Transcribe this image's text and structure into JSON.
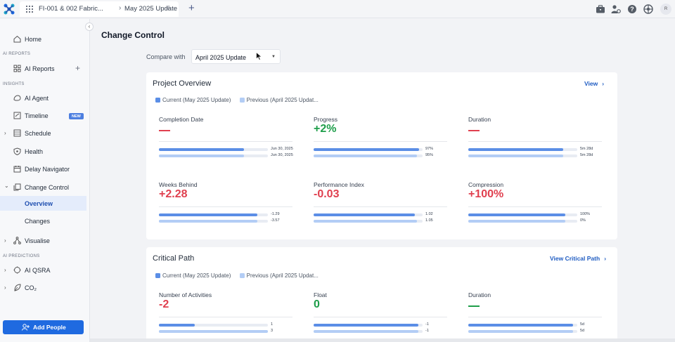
{
  "topbar": {
    "breadcrumb_project": "FI-001 & 002 Fabric...",
    "breadcrumb_separator": "›",
    "breadcrumb_update": "May 2025 Update",
    "menu_glyph": "≡",
    "new_tab_glyph": "+",
    "avatar_initial": "R",
    "icons": [
      "briefcase-icon",
      "user-gear-icon",
      "help-icon",
      "globe-icon"
    ]
  },
  "sidebar": {
    "collapse_glyph": "‹",
    "home": "Home",
    "section_ai_reports": "AI REPORTS",
    "ai_reports": "AI Reports",
    "add_glyph": "+",
    "section_insights": "INSIGHTS",
    "ai_agent": "AI Agent",
    "timeline": "Timeline",
    "timeline_badge": "NEW",
    "schedule": "Schedule",
    "health": "Health",
    "delay_navigator": "Delay Navigator",
    "change_control": "Change Control",
    "overview": "Overview",
    "changes": "Changes",
    "visualise": "Visualise",
    "section_ai_predictions": "AI PREDICTIONS",
    "ai_qsra": "AI QSRA",
    "co2": "CO₂",
    "chevron_right": "›",
    "chevron_down": "⌄",
    "add_people": "Add People"
  },
  "main": {
    "title": "Change Control",
    "compare_label": "Compare with",
    "compare_value": "April 2025 Update",
    "compare_arrow": "▼"
  },
  "colors": {
    "current": "#5b8ee6",
    "previous": "#b3cdf5",
    "red": "#e0404f",
    "green": "#1e9e4a"
  },
  "project_overview": {
    "title": "Project Overview",
    "link": "View",
    "link_chevron": "›",
    "legend_current": "Current (May 2025 Update)",
    "legend_previous": "Previous (April 2025 Updat...",
    "metrics": [
      {
        "label": "Completion Date",
        "value": "",
        "tone": "dash-red",
        "current": "Jun 30, 2025",
        "previous": "Jun 30, 2025",
        "current_frac": 0.78,
        "previous_frac": 0.78
      },
      {
        "label": "Progress",
        "value": "+2%",
        "tone": "green",
        "current": "97%",
        "previous": "95%",
        "current_frac": 0.97,
        "previous_frac": 0.95
      },
      {
        "label": "Duration",
        "value": "",
        "tone": "dash-red",
        "current": "5m 28d",
        "previous": "5m 28d",
        "current_frac": 0.87,
        "previous_frac": 0.87
      },
      {
        "label": "Weeks Behind",
        "value": "+2.28",
        "tone": "red",
        "current": "-1.29",
        "previous": "-3.57",
        "current_frac": 0.9,
        "previous_frac": 0.9
      },
      {
        "label": "Performance Index",
        "value": "-0.03",
        "tone": "red",
        "current": "1.02",
        "previous": "1.05",
        "current_frac": 0.93,
        "previous_frac": 0.95
      },
      {
        "label": "Compression",
        "value": "+100%",
        "tone": "red",
        "current": "100%",
        "previous": "0%",
        "current_frac": 0.89,
        "previous_frac": 0.89
      }
    ]
  },
  "critical_path": {
    "title": "Critical Path",
    "link": "View Critical Path",
    "link_chevron": "›",
    "legend_current": "Current (May 2025 Update)",
    "legend_previous": "Previous (April 2025 Updat...",
    "metrics": [
      {
        "label": "Number of Activities",
        "value": "-2",
        "tone": "red",
        "current": "1",
        "previous": "3",
        "current_frac": 0.33,
        "previous_frac": 1.0
      },
      {
        "label": "Float",
        "value": "0",
        "tone": "green",
        "current": "-1",
        "previous": "-1",
        "current_frac": 0.96,
        "previous_frac": 0.96
      },
      {
        "label": "Duration",
        "value": "",
        "tone": "dash-green",
        "current": "5d",
        "previous": "5d",
        "current_frac": 0.96,
        "previous_frac": 0.96
      }
    ]
  }
}
